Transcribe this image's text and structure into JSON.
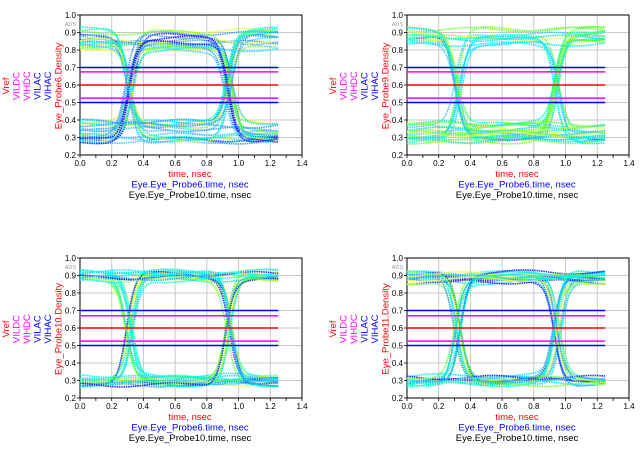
{
  "chart_data": [
    {
      "type": "line",
      "subtype": "eye-diagram",
      "watermark": "ADS",
      "ylabels": [
        {
          "text": "Vref",
          "color": "#ff0000"
        },
        {
          "text": "VILDC",
          "color": "#ff00ff"
        },
        {
          "text": "VIHDC",
          "color": "#ff00ff"
        },
        {
          "text": "VILAC",
          "color": "#0000ff"
        },
        {
          "text": "VIHAC",
          "color": "#0000ff"
        },
        {
          "text": "Eye_Probe6.Density",
          "color": "#ff0000"
        }
      ],
      "xlabels": [
        {
          "text": "time, nsec",
          "color": "#ff0000"
        },
        {
          "text": "Eye.Eye_Probe6.time, nsec",
          "color": "#0000ff"
        },
        {
          "text": "Eye.Eye_Probe10.time, nsec",
          "color": "#000000"
        }
      ],
      "xlim": [
        0.0,
        1.4
      ],
      "ylim": [
        0.2,
        1.0
      ],
      "xticks": [
        "0.0",
        "0.2",
        "0.4",
        "0.6",
        "0.8",
        "1.0",
        "1.2",
        "1.4"
      ],
      "yticks": [
        "0.2",
        "0.3",
        "0.4",
        "0.5",
        "0.6",
        "0.7",
        "0.8",
        "0.9",
        "1.0"
      ],
      "reference_lines": [
        {
          "name": "VIHAC",
          "value": 0.7,
          "color": "#0000ff"
        },
        {
          "name": "VIHDC",
          "value": 0.675,
          "color": "#ff00ff"
        },
        {
          "name": "Vref",
          "value": 0.6,
          "color": "#ff0000"
        },
        {
          "name": "VILDC",
          "value": 0.525,
          "color": "#ff00ff"
        },
        {
          "name": "VILAC",
          "value": 0.5,
          "color": "#0000ff"
        }
      ],
      "ref_x_range": [
        0.0,
        1.25
      ],
      "eye": {
        "crossings": [
          0.31,
          0.94
        ],
        "high": [
          0.8,
          0.925
        ],
        "low": [
          0.275,
          0.4
        ],
        "t_end": 1.25,
        "seed": 3
      }
    },
    {
      "type": "line",
      "subtype": "eye-diagram",
      "watermark": "ADS",
      "ylabels": [
        {
          "text": "Vref",
          "color": "#ff0000"
        },
        {
          "text": "VILDC",
          "color": "#ff00ff"
        },
        {
          "text": "VIHDC",
          "color": "#ff00ff"
        },
        {
          "text": "VILAC",
          "color": "#0000ff"
        },
        {
          "text": "VIHAC",
          "color": "#0000ff"
        },
        {
          "text": "Eye_Probe9.Density",
          "color": "#ff0000"
        }
      ],
      "xlabels": [
        {
          "text": "time, nsec",
          "color": "#ff0000"
        },
        {
          "text": "Eye.Eye_Probe6.time, nsec",
          "color": "#0000ff"
        },
        {
          "text": "Eye.Eye_Probe10.time, nsec",
          "color": "#000000"
        }
      ],
      "xlim": [
        0.0,
        1.4
      ],
      "ylim": [
        0.2,
        1.0
      ],
      "xticks": [
        "0.0",
        "0.2",
        "0.4",
        "0.6",
        "0.8",
        "1.0",
        "1.2",
        "1.4"
      ],
      "yticks": [
        "0.2",
        "0.3",
        "0.4",
        "0.5",
        "0.6",
        "0.7",
        "0.8",
        "0.9",
        "1.0"
      ],
      "reference_lines": [
        {
          "name": "VIHAC",
          "value": 0.7,
          "color": "#0000ff"
        },
        {
          "name": "VIHDC",
          "value": 0.675,
          "color": "#ff00ff"
        },
        {
          "name": "Vref",
          "value": 0.6,
          "color": "#ff0000"
        },
        {
          "name": "VILDC",
          "value": 0.525,
          "color": "#ff00ff"
        },
        {
          "name": "VILAC",
          "value": 0.5,
          "color": "#0000ff"
        }
      ],
      "ref_x_range": [
        0.0,
        1.25
      ],
      "eye": {
        "crossings": [
          0.32,
          0.94
        ],
        "high": [
          0.82,
          0.925
        ],
        "low": [
          0.275,
          0.39
        ],
        "t_end": 1.25,
        "seed": 7
      }
    },
    {
      "type": "line",
      "subtype": "eye-diagram",
      "watermark": "ADS",
      "ylabels": [
        {
          "text": "Vref",
          "color": "#ff0000"
        },
        {
          "text": "VILDC",
          "color": "#ff00ff"
        },
        {
          "text": "VIHDC",
          "color": "#ff00ff"
        },
        {
          "text": "VILAC",
          "color": "#0000ff"
        },
        {
          "text": "VIHAC",
          "color": "#0000ff"
        },
        {
          "text": "Eye_Probe10.Density",
          "color": "#ff0000"
        }
      ],
      "xlabels": [
        {
          "text": "time, nsec",
          "color": "#ff0000"
        },
        {
          "text": "Eye.Eye_Probe6.time, nsec",
          "color": "#0000ff"
        },
        {
          "text": "Eye.Eye_Probe10.time, nsec",
          "color": "#000000"
        }
      ],
      "xlim": [
        0.0,
        1.4
      ],
      "ylim": [
        0.2,
        1.0
      ],
      "xticks": [
        "0.0",
        "0.2",
        "0.4",
        "0.6",
        "0.8",
        "1.0",
        "1.2",
        "1.4"
      ],
      "yticks": [
        "0.2",
        "0.3",
        "0.4",
        "0.5",
        "0.6",
        "0.7",
        "0.8",
        "0.9",
        "1.0"
      ],
      "reference_lines": [
        {
          "name": "VIHAC",
          "value": 0.7,
          "color": "#0000ff"
        },
        {
          "name": "VIHDC",
          "value": 0.67,
          "color": "#ff00ff"
        },
        {
          "name": "Vref",
          "value": 0.6,
          "color": "#ff0000"
        },
        {
          "name": "VILDC",
          "value": 0.525,
          "color": "#ff00ff"
        },
        {
          "name": "VILAC",
          "value": 0.5,
          "color": "#0000ff"
        }
      ],
      "ref_x_range": [
        0.0,
        1.25
      ],
      "eye": {
        "crossings": [
          0.31,
          0.94
        ],
        "high": [
          0.87,
          0.925
        ],
        "low": [
          0.275,
          0.33
        ],
        "t_end": 1.25,
        "seed": 11
      }
    },
    {
      "type": "line",
      "subtype": "eye-diagram",
      "watermark": "ADS",
      "ylabels": [
        {
          "text": "Vref",
          "color": "#ff0000"
        },
        {
          "text": "VILDC",
          "color": "#ff00ff"
        },
        {
          "text": "VIHDC",
          "color": "#ff00ff"
        },
        {
          "text": "VILAC",
          "color": "#0000ff"
        },
        {
          "text": "VIHAC",
          "color": "#0000ff"
        },
        {
          "text": "Eye_Probe11.Density",
          "color": "#ff0000"
        }
      ],
      "xlabels": [
        {
          "text": "time, nsec",
          "color": "#ff0000"
        },
        {
          "text": "Eye.Eye_Probe6.time, nsec",
          "color": "#0000ff"
        },
        {
          "text": "Eye.Eye_Probe10.time, nsec",
          "color": "#000000"
        }
      ],
      "xlim": [
        0.0,
        1.4
      ],
      "ylim": [
        0.2,
        1.0
      ],
      "xticks": [
        "0.0",
        "0.2",
        "0.4",
        "0.6",
        "0.8",
        "1.0",
        "1.2",
        "1.4"
      ],
      "yticks": [
        "0.2",
        "0.3",
        "0.4",
        "0.5",
        "0.6",
        "0.7",
        "0.8",
        "0.9",
        "1.0"
      ],
      "reference_lines": [
        {
          "name": "VIHAC",
          "value": 0.7,
          "color": "#0000ff"
        },
        {
          "name": "VIHDC",
          "value": 0.67,
          "color": "#ff00ff"
        },
        {
          "name": "Vref",
          "value": 0.6,
          "color": "#ff0000"
        },
        {
          "name": "VILDC",
          "value": 0.525,
          "color": "#ff00ff"
        },
        {
          "name": "VILAC",
          "value": 0.5,
          "color": "#0000ff"
        }
      ],
      "ref_x_range": [
        0.0,
        1.25
      ],
      "eye": {
        "crossings": [
          0.32,
          0.945
        ],
        "high": [
          0.86,
          0.925
        ],
        "low": [
          0.275,
          0.34
        ],
        "t_end": 1.25,
        "seed": 19
      }
    }
  ],
  "trace_colors": [
    "#00e5ff",
    "#33ccff",
    "#1a1aff",
    "#66ff33",
    "#e6ff33",
    "#00ffcc",
    "#3399ff"
  ]
}
